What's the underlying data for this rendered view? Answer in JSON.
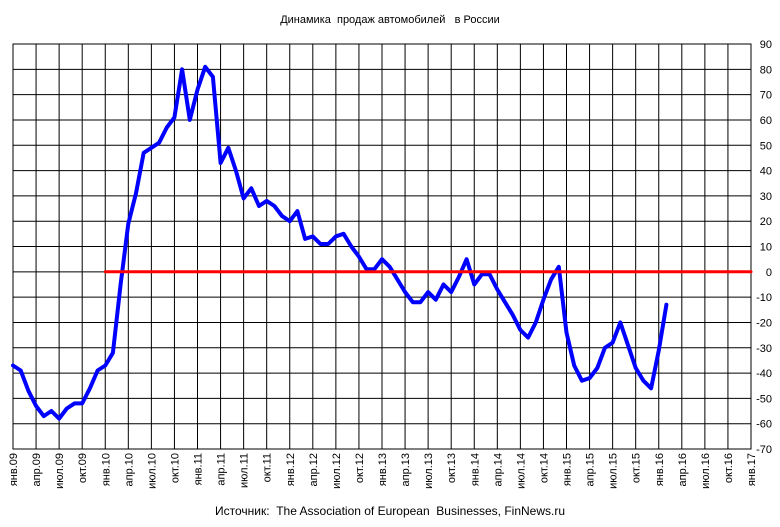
{
  "chart_data": {
    "type": "line",
    "title": "Динамика  продаж автомобилей   в России",
    "source": "Источник:  The Association of European  Businesses, FinNews.ru",
    "ylim": [
      -70,
      90
    ],
    "yticks": [
      90,
      80,
      70,
      60,
      50,
      40,
      30,
      20,
      10,
      0,
      -10,
      -20,
      -30,
      -40,
      -50,
      -60,
      -70
    ],
    "xtick_labels": [
      "янв.09",
      "апр.09",
      "июл.09",
      "окт.09",
      "янв.10",
      "апр.10",
      "июл.10",
      "окт.10",
      "янв.11",
      "апр.11",
      "июл.11",
      "окт.11",
      "янв.12",
      "апр.12",
      "июл.12",
      "окт.12",
      "янв.13",
      "апр.13",
      "июл.13",
      "окт.13",
      "янв.14",
      "апр.14",
      "июл.14",
      "окт.14",
      "янв.15",
      "апр.15",
      "июл.15",
      "окт.15",
      "янв.16",
      "апр.16",
      "июл.16",
      "окт.16",
      "янв.17"
    ],
    "grid": true,
    "y_axis_position": "right",
    "series": [
      {
        "color": "#0000ff",
        "x": [
          "2009-01",
          "2009-02",
          "2009-03",
          "2009-04",
          "2009-05",
          "2009-06",
          "2009-07",
          "2009-08",
          "2009-09",
          "2009-10",
          "2009-11",
          "2009-12",
          "2010-01",
          "2010-02",
          "2010-03",
          "2010-04",
          "2010-05",
          "2010-06",
          "2010-07",
          "2010-08",
          "2010-09",
          "2010-10",
          "2010-11",
          "2010-12",
          "2011-01",
          "2011-02",
          "2011-03",
          "2011-04",
          "2011-05",
          "2011-06",
          "2011-07",
          "2011-08",
          "2011-09",
          "2011-10",
          "2011-11",
          "2011-12",
          "2012-01",
          "2012-02",
          "2012-03",
          "2012-04",
          "2012-05",
          "2012-06",
          "2012-07",
          "2012-08",
          "2012-09",
          "2012-10",
          "2012-11",
          "2012-12",
          "2013-01",
          "2013-02",
          "2013-03",
          "2013-04",
          "2013-05",
          "2013-06",
          "2013-07",
          "2013-08",
          "2013-09",
          "2013-10",
          "2013-11",
          "2013-12",
          "2014-01",
          "2014-02",
          "2014-03",
          "2014-04",
          "2014-05",
          "2014-06",
          "2014-07",
          "2014-08",
          "2014-09",
          "2014-10",
          "2014-11",
          "2014-12",
          "2015-01",
          "2015-02",
          "2015-03",
          "2015-04",
          "2015-05",
          "2015-06",
          "2015-07",
          "2015-08",
          "2015-09",
          "2015-10",
          "2015-11",
          "2015-12",
          "2016-01",
          "2016-02"
        ],
        "y": [
          -37,
          -39,
          -47,
          -53,
          -57,
          -55,
          -58,
          -54,
          -52,
          -52,
          -46,
          -39,
          -37,
          -32,
          -5,
          19,
          31,
          47,
          49,
          51,
          57,
          61,
          80,
          60,
          72,
          81,
          77,
          43,
          49,
          40,
          29,
          33,
          26,
          28,
          26,
          22,
          20,
          24,
          13,
          14,
          11,
          11,
          14,
          15,
          10,
          6,
          1,
          1,
          5,
          2,
          -3,
          -8,
          -12,
          -12,
          -8,
          -11,
          -5,
          -8,
          -2,
          5,
          -5,
          -1,
          -1,
          -7,
          -12,
          -17,
          -23,
          -26,
          -20,
          -11,
          -3,
          2,
          -24,
          -37,
          -43,
          -42,
          -38,
          -30,
          -28,
          -20,
          -29,
          -38,
          -43,
          -46,
          -31,
          -13
        ]
      },
      {
        "color": "#ff0000",
        "x": [
          "2010-01",
          "2017-01"
        ],
        "y": [
          0,
          0
        ]
      }
    ]
  }
}
